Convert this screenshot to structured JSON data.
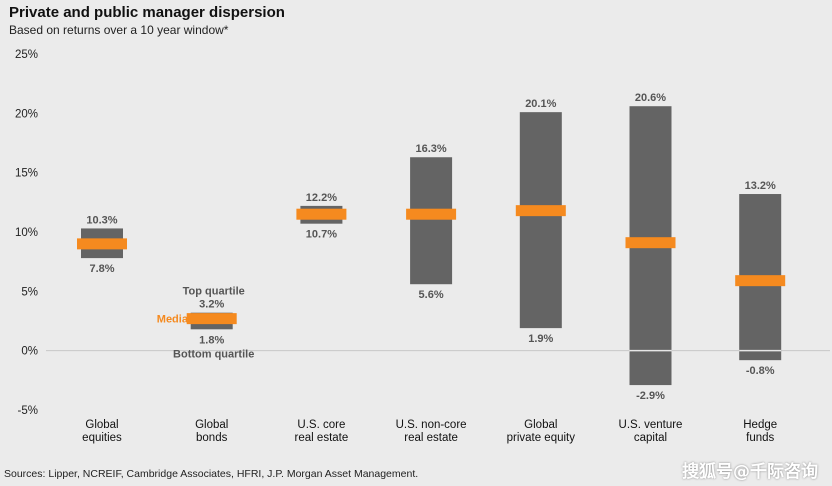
{
  "chart_data": {
    "type": "bar",
    "title": "Private and public manager dispersion",
    "subtitle": "Based on returns over a 10 year window*",
    "ylim": [
      -5,
      25
    ],
    "yticks": [
      -5,
      0,
      5,
      10,
      15,
      20,
      25
    ],
    "ytick_labels": [
      "-5%",
      "0%",
      "5%",
      "10%",
      "15%",
      "20%",
      "25%"
    ],
    "categories": [
      [
        "Global",
        "equities"
      ],
      [
        "Global",
        "bonds"
      ],
      [
        "U.S. core",
        "real estate"
      ],
      [
        "U.S. non-core",
        "real estate"
      ],
      [
        "Global",
        "private equity"
      ],
      [
        "U.S. venture",
        "capital"
      ],
      [
        "Hedge",
        "funds"
      ]
    ],
    "series": [
      {
        "name": "Top quartile",
        "values": [
          10.3,
          3.2,
          12.2,
          16.3,
          20.1,
          20.6,
          13.2
        ]
      },
      {
        "name": "Bottom quartile",
        "values": [
          7.8,
          1.8,
          10.7,
          5.6,
          1.9,
          -2.9,
          -0.8
        ]
      },
      {
        "name": "Median",
        "values": [
          9.0,
          2.7,
          11.5,
          11.5,
          11.8,
          9.1,
          5.9
        ]
      }
    ],
    "top_labels": [
      "10.3%",
      "3.2%",
      "12.2%",
      "16.3%",
      "20.1%",
      "20.6%",
      "13.2%"
    ],
    "bottom_labels": [
      "7.8%",
      "1.8%",
      "10.7%",
      "5.6%",
      "1.9%",
      "-2.9%",
      "-0.8%"
    ],
    "annotations": {
      "top_quartile": "Top quartile",
      "bottom_quartile": "Bottom quartile",
      "median": "Median"
    },
    "colors": {
      "bar": "#646464",
      "median": "#f58a1f",
      "value_label": "#555555",
      "grid": "#c8c8c8"
    }
  },
  "footer": {
    "sources": "Sources: Lipper, NCREIF, Cambridge Associates, HFRI, J.P. Morgan Asset Management."
  },
  "watermark": "搜狐号@千际咨询"
}
